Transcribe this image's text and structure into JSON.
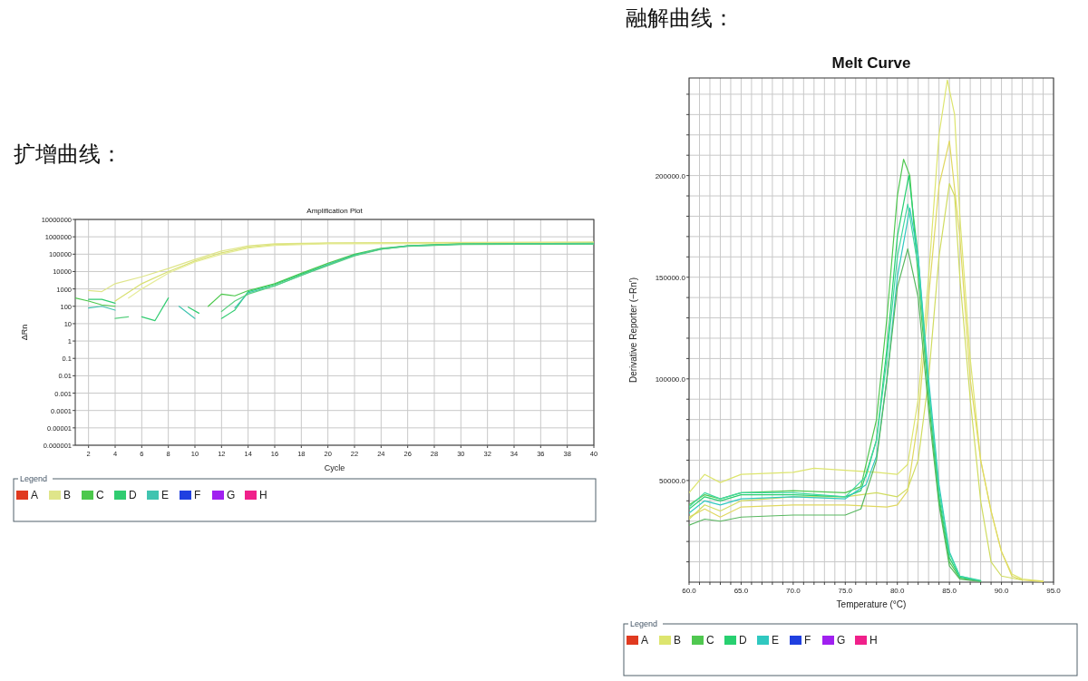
{
  "chart_data": [
    {
      "type": "line",
      "title": "Amplification Plot",
      "xlabel": "Cycle",
      "ylabel": "ΔRn",
      "annotations": [
        "扩增曲线："
      ],
      "log": true,
      "grid": true,
      "legend": "bottom",
      "legend_title": "Legend",
      "xlim": [
        1,
        40
      ],
      "xticks": [
        2,
        4,
        6,
        8,
        10,
        12,
        14,
        16,
        18,
        20,
        22,
        24,
        26,
        28,
        30,
        32,
        34,
        36,
        38,
        40
      ],
      "ylim": [
        1e-06,
        10000000
      ],
      "yticks": [
        {
          "value": 1e-06,
          "label": "0.000001"
        },
        {
          "value": 1e-05,
          "label": "0.00001"
        },
        0.0001,
        0.001,
        0.01,
        0.1,
        1,
        10,
        100,
        1000,
        10000,
        100000,
        1000000,
        10000000
      ],
      "series": [
        {
          "name": "A",
          "color": "#e03a20"
        },
        {
          "name": "B",
          "color": "#dfe58a",
          "x": [
            2,
            3,
            4,
            6,
            8,
            10,
            12,
            14,
            16,
            20,
            30,
            40
          ],
          "values": [
            800,
            700,
            2000,
            5000,
            15000,
            50000,
            150000,
            300000,
            400000,
            450000,
            480000,
            500000
          ]
        },
        {
          "color": "#d8e070",
          "x": [
            4,
            6,
            8,
            10,
            12,
            14,
            16,
            20,
            30,
            40
          ],
          "values": [
            200,
            2000,
            10000,
            40000,
            120000,
            250000,
            350000,
            420000,
            450000,
            450000
          ]
        },
        {
          "color": "#e6ec9a",
          "x": [
            5,
            6,
            8,
            10,
            12,
            14,
            16,
            20,
            40
          ],
          "values": [
            300,
            1000,
            8000,
            35000,
            100000,
            220000,
            320000,
            400000,
            420000
          ]
        },
        {
          "name": "C",
          "color": "#4cc84c",
          "x": [
            11,
            12,
            13,
            14,
            16,
            18,
            20,
            22,
            24,
            26,
            28,
            30,
            35,
            40
          ],
          "values": [
            100,
            500,
            400,
            800,
            2000,
            8000,
            30000,
            100000,
            220000,
            300000,
            350000,
            380000,
            400000,
            400000
          ]
        },
        {
          "color": "#4cc84c",
          "x": [
            1,
            2,
            3,
            4
          ],
          "values": [
            300,
            200,
            120,
            100
          ]
        },
        {
          "name": "D",
          "color": "#30cc70",
          "x": [
            12,
            13,
            14,
            16,
            18,
            20,
            22,
            24,
            26,
            30,
            40
          ],
          "values": [
            20,
            60,
            700,
            1800,
            7000,
            25000,
            90000,
            200000,
            300000,
            380000,
            420000
          ]
        },
        {
          "color": "#30cc70",
          "x": [
            2,
            3,
            4
          ],
          "values": [
            250,
            250,
            150
          ]
        },
        {
          "color": "#30cc70",
          "x": [
            6,
            7,
            8
          ],
          "values": [
            25,
            15,
            300
          ]
        },
        {
          "color": "#30cc70",
          "x": [
            9.5,
            10.3
          ],
          "values": [
            90,
            40
          ]
        },
        {
          "name": "E",
          "color": "#40c4b0",
          "x": [
            13,
            14,
            16,
            18,
            20,
            22,
            24,
            26,
            30,
            40
          ],
          "values": [
            80,
            600,
            1500,
            6000,
            25000,
            85000,
            200000,
            290000,
            370000,
            400000
          ]
        },
        {
          "color": "#40c4b0",
          "x": [
            2,
            3,
            4
          ],
          "values": [
            80,
            100,
            60
          ]
        },
        {
          "color": "#40c4b0",
          "x": [
            8.8,
            10
          ],
          "values": [
            100,
            20
          ]
        },
        {
          "color": "#5ad080",
          "x": [
            12,
            13,
            14,
            16,
            18,
            20,
            22,
            24,
            26,
            30,
            40
          ],
          "values": [
            50,
            200,
            500,
            1500,
            6000,
            22000,
            80000,
            190000,
            280000,
            360000,
            380000
          ]
        },
        {
          "color": "#5ad080",
          "x": [
            4,
            5
          ],
          "values": [
            20,
            25
          ]
        },
        {
          "name": "F",
          "color": "#2040e0"
        },
        {
          "name": "G",
          "color": "#a020f0"
        },
        {
          "name": "H",
          "color": "#f0208a"
        }
      ]
    },
    {
      "type": "line",
      "title": "Melt Curve",
      "xlabel": "Temperature (°C)",
      "ylabel": "Derivative Reporter (−Rn′)",
      "annotations": [
        "融解曲线："
      ],
      "grid": true,
      "legend": "bottom",
      "legend_title": "Legend",
      "xlim": [
        60,
        95
      ],
      "xticks": [
        {
          "value": 60,
          "label": "60.0"
        },
        {
          "value": 61,
          "label": null
        },
        {
          "value": 62,
          "label": null
        },
        {
          "value": 63,
          "label": null
        },
        {
          "value": 64,
          "label": null
        },
        {
          "value": 65,
          "label": "65.0"
        },
        {
          "value": 66,
          "label": null
        },
        {
          "value": 67,
          "label": null
        },
        {
          "value": 68,
          "label": null
        },
        {
          "value": 69,
          "label": null
        },
        {
          "value": 70,
          "label": "70.0"
        },
        {
          "value": 71,
          "label": null
        },
        {
          "value": 72,
          "label": null
        },
        {
          "value": 73,
          "label": null
        },
        {
          "value": 74,
          "label": null
        },
        {
          "value": 75,
          "label": "75.0"
        },
        {
          "value": 76,
          "label": null
        },
        {
          "value": 77,
          "label": null
        },
        {
          "value": 78,
          "label": null
        },
        {
          "value": 79,
          "label": null
        },
        {
          "value": 80,
          "label": "80.0"
        },
        {
          "value": 81,
          "label": null
        },
        {
          "value": 82,
          "label": null
        },
        {
          "value": 83,
          "label": null
        },
        {
          "value": 84,
          "label": null
        },
        {
          "value": 85,
          "label": "85.0"
        },
        {
          "value": 86,
          "label": null
        },
        {
          "value": 87,
          "label": null
        },
        {
          "value": 88,
          "label": null
        },
        {
          "value": 89,
          "label": null
        },
        {
          "value": 90,
          "label": "90.0"
        },
        {
          "value": 91,
          "label": null
        },
        {
          "value": 92,
          "label": null
        },
        {
          "value": 93,
          "label": null
        },
        {
          "value": 94,
          "label": null
        },
        {
          "value": 95,
          "label": "95.0"
        }
      ],
      "ylim": [
        0,
        248000
      ],
      "yticks": [
        {
          "value": 10000,
          "label": null
        },
        {
          "value": 20000,
          "label": null
        },
        {
          "value": 30000,
          "label": null
        },
        {
          "value": 40000,
          "label": null
        },
        {
          "value": 50000,
          "label": "50000.0"
        },
        {
          "value": 60000,
          "label": null
        },
        {
          "value": 70000,
          "label": null
        },
        {
          "value": 80000,
          "label": null
        },
        {
          "value": 90000,
          "label": null
        },
        {
          "value": 100000,
          "label": "100000.0"
        },
        {
          "value": 110000,
          "label": null
        },
        {
          "value": 120000,
          "label": null
        },
        {
          "value": 130000,
          "label": null
        },
        {
          "value": 140000,
          "label": null
        },
        {
          "value": 150000,
          "label": "150000.0"
        },
        {
          "value": 160000,
          "label": null
        },
        {
          "value": 170000,
          "label": null
        },
        {
          "value": 180000,
          "label": null
        },
        {
          "value": 190000,
          "label": null
        },
        {
          "value": 200000,
          "label": "200000.0"
        },
        {
          "value": 210000,
          "label": null
        },
        {
          "value": 220000,
          "label": null
        },
        {
          "value": 230000,
          "label": null
        },
        {
          "value": 240000,
          "label": null
        }
      ],
      "series": [
        {
          "name": "A",
          "color": "#e03a20"
        },
        {
          "name": "B",
          "color": "#dde56e",
          "x": [
            60,
            61.5,
            63,
            65,
            70,
            72,
            75,
            78,
            80,
            81,
            82,
            83,
            84,
            84.8,
            85.5,
            86,
            87,
            88,
            89,
            90,
            91,
            92,
            94
          ],
          "values": [
            44000,
            53000,
            49000,
            53000,
            54000,
            56000,
            55000,
            54000,
            53000,
            58000,
            90000,
            150000,
            220000,
            247000,
            230000,
            180000,
            110000,
            60000,
            35000,
            15000,
            4000,
            1500,
            500
          ]
        },
        {
          "color": "#e0d860",
          "x": [
            60,
            61.5,
            63,
            65,
            70,
            75,
            79,
            80,
            81,
            82,
            83,
            84,
            85,
            86,
            87,
            88,
            89,
            90,
            91,
            92,
            94
          ],
          "values": [
            32000,
            36000,
            32000,
            37000,
            38000,
            38000,
            37000,
            38000,
            45000,
            80000,
            140000,
            195000,
            217000,
            170000,
            100000,
            60000,
            35000,
            15000,
            3000,
            1000,
            300
          ]
        },
        {
          "color": "#d0dc60",
          "x": [
            60,
            61.5,
            63,
            65,
            70,
            75,
            78,
            80,
            81,
            82,
            83,
            84,
            85,
            85.5,
            86,
            87,
            88,
            89,
            90,
            92
          ],
          "values": [
            31000,
            38000,
            35000,
            40000,
            42000,
            42000,
            44000,
            42000,
            46000,
            60000,
            100000,
            160000,
            196000,
            190000,
            150000,
            90000,
            40000,
            10000,
            3000,
            1000
          ]
        },
        {
          "name": "C",
          "color": "#50c850",
          "x": [
            60,
            61.5,
            63,
            65,
            70,
            75,
            76.5,
            78,
            79,
            80,
            80.6,
            81.2,
            82,
            83,
            84,
            85,
            86,
            88
          ],
          "values": [
            38000,
            43000,
            41000,
            44000,
            45000,
            44000,
            47000,
            80000,
            130000,
            190000,
            208000,
            200000,
            150000,
            90000,
            40000,
            10000,
            2000,
            500
          ]
        },
        {
          "name": "D",
          "color": "#28d070",
          "x": [
            60,
            61.5,
            63,
            65,
            70,
            75,
            76.5,
            78,
            79,
            80,
            81.1,
            82,
            83,
            84,
            85,
            86,
            88
          ],
          "values": [
            36000,
            42000,
            40000,
            43000,
            43000,
            42000,
            45000,
            70000,
            115000,
            170000,
            200000,
            160000,
            95000,
            42000,
            12000,
            2500,
            500
          ]
        },
        {
          "name": "E",
          "color": "#30c8c0",
          "x": [
            60,
            61.5,
            63,
            65,
            70,
            75,
            77,
            78,
            79,
            80,
            81.2,
            82,
            83,
            84,
            85,
            86,
            88
          ],
          "values": [
            34000,
            40000,
            38000,
            41000,
            42000,
            41000,
            48000,
            62000,
            100000,
            150000,
            184000,
            160000,
            100000,
            48000,
            15000,
            3000,
            500
          ]
        },
        {
          "color": "#40d8a0",
          "x": [
            60,
            61.5,
            63,
            65,
            70,
            75,
            77,
            78,
            79,
            80,
            81,
            82,
            83,
            84,
            85,
            86,
            88
          ],
          "values": [
            37000,
            44000,
            41000,
            44000,
            44000,
            42000,
            52000,
            70000,
            110000,
            160000,
            186000,
            155000,
            95000,
            45000,
            14000,
            3000,
            800
          ]
        },
        {
          "color": "#58b860",
          "x": [
            60,
            61.5,
            63,
            65,
            70,
            75,
            76.5,
            78,
            79,
            80,
            81,
            82,
            83,
            84,
            85,
            86,
            88
          ],
          "values": [
            28000,
            31000,
            30000,
            32000,
            33000,
            33000,
            36000,
            60000,
            100000,
            145000,
            164000,
            140000,
            85000,
            38000,
            8000,
            1500,
            300
          ]
        },
        {
          "name": "F",
          "color": "#2040e0"
        },
        {
          "name": "G",
          "color": "#a020f0"
        },
        {
          "name": "H",
          "color": "#f0208a"
        }
      ]
    }
  ]
}
